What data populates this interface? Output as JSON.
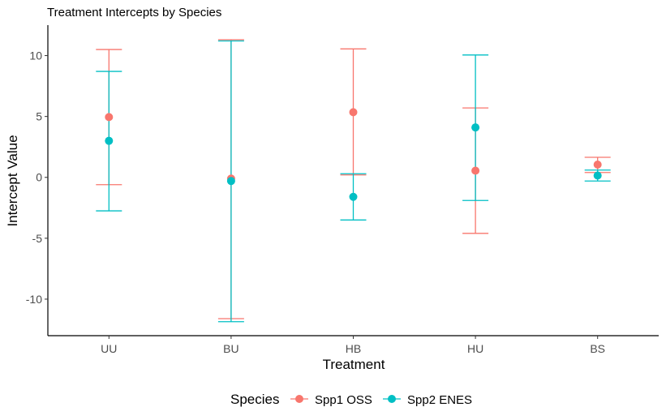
{
  "chart_data": {
    "type": "errorbar-point",
    "title": "Treatment Intercepts by Species",
    "xlabel": "Treatment",
    "ylabel": "Intercept Value",
    "categories": [
      "UU",
      "BU",
      "HB",
      "HU",
      "BS"
    ],
    "ylim": [
      -13,
      12.5
    ],
    "yticks": [
      -10,
      -5,
      0,
      5,
      10
    ],
    "ytick_labels": [
      "-10",
      "-5",
      "0",
      "5",
      "10"
    ],
    "grid": false,
    "legend": {
      "title": "Species",
      "position": "bottom"
    },
    "series": [
      {
        "name": "Spp1 OSS",
        "color": "#F8766D",
        "values": [
          4.95,
          -0.1,
          5.35,
          0.55,
          1.05
        ],
        "lower": [
          -0.6,
          -11.6,
          0.2,
          -4.6,
          0.4
        ],
        "upper": [
          10.5,
          11.3,
          10.55,
          5.7,
          1.65
        ]
      },
      {
        "name": "Spp2 ENES",
        "color": "#00BFC4",
        "values": [
          3.0,
          -0.3,
          -1.6,
          4.1,
          0.15
        ],
        "lower": [
          -2.75,
          -11.85,
          -3.5,
          -1.9,
          -0.3
        ],
        "upper": [
          8.7,
          11.2,
          0.3,
          10.05,
          0.6
        ]
      }
    ]
  }
}
